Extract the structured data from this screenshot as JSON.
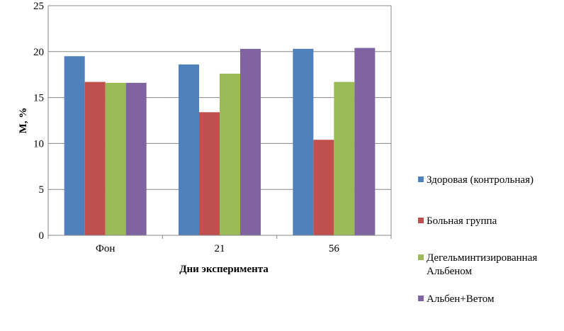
{
  "chart_data": {
    "type": "bar",
    "title": "",
    "xlabel": "Дни эксперимента",
    "ylabel": "М, %",
    "ylim": [
      0,
      25
    ],
    "yticks": [
      0,
      5,
      10,
      15,
      20,
      25
    ],
    "grid": true,
    "legend_position": "right",
    "categories": [
      "Фон",
      "21",
      "56"
    ],
    "series": [
      {
        "name": "Здоровая (контрольная)",
        "color": "#4F81BD",
        "values": [
          19.5,
          18.6,
          20.3
        ]
      },
      {
        "name": "Больная группа",
        "color": "#C0504D",
        "values": [
          16.7,
          13.4,
          10.4
        ]
      },
      {
        "name": "Дегельминтизированная Альбеном",
        "color": "#9BBB59",
        "values": [
          16.6,
          17.6,
          16.7
        ]
      },
      {
        "name": "Альбен+Ветом",
        "color": "#8064A2",
        "values": [
          16.6,
          20.3,
          20.4
        ]
      }
    ]
  }
}
